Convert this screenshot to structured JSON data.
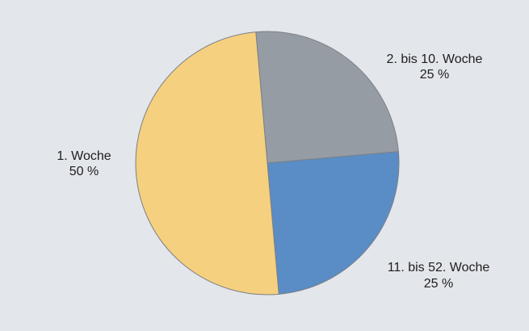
{
  "chart_data": {
    "type": "pie",
    "slices": [
      {
        "label": "2. bis 10. Woche",
        "percent_label": "25 %",
        "value": 25,
        "color": "#959ca4"
      },
      {
        "label": "11. bis 52. Woche",
        "percent_label": "25 %",
        "value": 25,
        "color": "#5a8cc6"
      },
      {
        "label": "1. Woche",
        "percent_label": "50 %",
        "value": 50,
        "color": "#f5d07f"
      }
    ],
    "start_angle_deg": -5,
    "direction": "clockwise",
    "legend": "none"
  }
}
